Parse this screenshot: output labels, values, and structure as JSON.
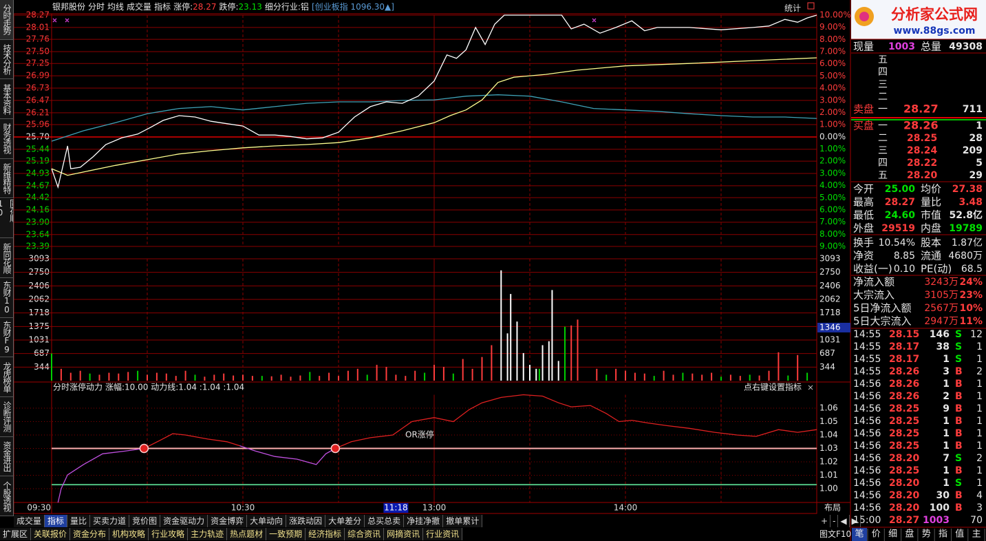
{
  "header": {
    "stock": "银邦股份",
    "menus": [
      "分时",
      "均线",
      "成交量",
      "指标"
    ],
    "limit_up_label": "涨停:",
    "limit_up": "28.27",
    "limit_down_label": "跌停:",
    "limit_down": "23.13",
    "industry": "细分行业:铝",
    "index": "[创业板指 1096.30▲]",
    "stats_button": "统计"
  },
  "side_tabs": [
    "分时走势",
    "技术分析",
    "基本资料",
    "财务透视",
    "新维精特",
    "同花顺10",
    "新同花顺",
    "东财10",
    "东财F9",
    "龙虎榜单",
    "诊断评测",
    "资金进出",
    "个股透视"
  ],
  "chart_data": [
    {
      "type": "line",
      "base": 25.7,
      "xlim": [
        0,
        240
      ],
      "xgrid": [
        30,
        60,
        90,
        120,
        150,
        180,
        210
      ],
      "ylim": [
        23.39,
        28.27
      ],
      "yticks": [
        28.27,
        28.01,
        27.76,
        {
          "value": 27.5,
          "label": "27.50"
        },
        27.25,
        26.99,
        26.73,
        26.47,
        26.21,
        25.96,
        {
          "value": 25.7,
          "label": "25.70"
        },
        25.44,
        25.19,
        24.93,
        24.67,
        24.42,
        24.16,
        {
          "value": 23.9,
          "label": "23.90"
        },
        23.64,
        23.39
      ],
      "y2lim": [
        -9,
        10
      ],
      "y2ticks": [
        {
          "value": 10,
          "label": "10.00%"
        },
        {
          "value": 9,
          "label": "9.00%"
        },
        {
          "value": 8,
          "label": "8.00%"
        },
        {
          "value": 7,
          "label": "7.00%"
        },
        {
          "value": 6,
          "label": "6.00%"
        },
        {
          "value": 5,
          "label": "5.00%"
        },
        {
          "value": 4,
          "label": "4.00%"
        },
        {
          "value": 3,
          "label": "3.00%"
        },
        {
          "value": 2,
          "label": "2.00%"
        },
        {
          "value": 1,
          "label": "1.00%"
        },
        {
          "value": 0,
          "label": "0.00%"
        },
        {
          "value": -1,
          "label": "1.00%"
        },
        {
          "value": -2,
          "label": "2.00%"
        },
        {
          "value": -3,
          "label": "3.00%"
        },
        {
          "value": -4,
          "label": "4.00%"
        },
        {
          "value": -5,
          "label": "5.00%"
        },
        {
          "value": -6,
          "label": "6.00%"
        },
        {
          "value": -7,
          "label": "7.00%"
        },
        {
          "value": -8,
          "label": "8.00%"
        },
        {
          "value": -9,
          "label": "9.00%"
        }
      ],
      "series": [
        {
          "color": "#3fa3b8",
          "x": [
            0,
            10,
            20,
            30,
            40,
            50,
            60,
            70,
            80,
            90,
            100,
            110,
            120,
            130,
            140,
            150,
            160,
            170,
            180,
            190,
            200,
            210,
            220,
            230,
            240
          ],
          "values": [
            25.61,
            25.83,
            26.0,
            26.19,
            26.3,
            26.34,
            26.27,
            26.34,
            26.41,
            26.44,
            26.44,
            26.47,
            26.48,
            26.56,
            26.59,
            26.56,
            26.44,
            26.3,
            26.27,
            26.24,
            26.19,
            26.15,
            26.12,
            26.12,
            26.09
          ]
        },
        {
          "color": "#ffff90",
          "x": [
            0,
            5,
            10,
            20,
            30,
            40,
            50,
            60,
            70,
            80,
            90,
            100,
            110,
            120,
            125,
            130,
            135,
            140,
            145,
            155,
            165,
            180,
            200,
            220,
            240
          ],
          "values": [
            25.03,
            24.89,
            24.96,
            25.1,
            25.22,
            25.34,
            25.41,
            25.47,
            25.51,
            25.54,
            25.58,
            25.68,
            25.83,
            26.0,
            26.15,
            26.27,
            26.48,
            26.85,
            26.96,
            27.02,
            27.11,
            27.2,
            27.25,
            27.31,
            27.37
          ]
        },
        {
          "color": "#ffffff",
          "x": [
            0,
            2,
            5,
            6,
            9,
            13,
            17,
            22,
            27,
            31,
            35,
            40,
            45,
            50,
            55,
            60,
            65,
            70,
            75,
            80,
            85,
            90,
            95,
            100,
            105,
            110,
            115,
            120,
            124,
            127,
            130,
            133,
            136,
            139,
            142,
            160,
            163,
            167,
            172,
            177,
            182,
            186,
            190,
            200,
            210,
            220,
            225,
            230,
            234,
            237,
            240
          ],
          "values": [
            25.03,
            24.64,
            25.51,
            25.03,
            25.06,
            25.28,
            25.54,
            25.68,
            25.76,
            25.9,
            26.05,
            26.15,
            26.12,
            26.03,
            25.98,
            25.93,
            25.74,
            25.74,
            25.71,
            25.66,
            25.68,
            25.8,
            26.12,
            26.34,
            26.44,
            26.41,
            26.56,
            26.88,
            27.43,
            27.36,
            27.54,
            28.01,
            27.65,
            28.08,
            28.27,
            28.27,
            27.98,
            28.08,
            27.89,
            28.01,
            28.15,
            27.94,
            28.01,
            28.01,
            27.96,
            28.01,
            28.04,
            28.18,
            28.12,
            28.21,
            28.27
          ]
        }
      ]
    },
    {
      "type": "bar",
      "xlim": [
        0,
        240
      ],
      "ylim": [
        0,
        3093
      ],
      "yticks": [
        3093,
        2750,
        2406,
        2062,
        1718,
        1375,
        1031,
        687,
        344
      ],
      "current": 1346,
      "series": [
        {
          "color": "#ff3c3c",
          "x": [
            3,
            6,
            9,
            15,
            18,
            21,
            24,
            30,
            33,
            36,
            39,
            42,
            48,
            51,
            54,
            57,
            60,
            63,
            69,
            72,
            75,
            78,
            84,
            87,
            90,
            93,
            96,
            102,
            105,
            108,
            111,
            114,
            120,
            123,
            129,
            132,
            135,
            138,
            163,
            165,
            171,
            177,
            180,
            183,
            186,
            192,
            195,
            201,
            204,
            207,
            213,
            216,
            222,
            225,
            228,
            234
          ],
          "values": [
            300,
            200,
            250,
            150,
            200,
            180,
            220,
            150,
            200,
            180,
            120,
            250,
            100,
            150,
            180,
            130,
            150,
            120,
            110,
            150,
            100,
            130,
            120,
            200,
            120,
            250,
            300,
            400,
            350,
            150,
            120,
            250,
            400,
            350,
            550,
            300,
            600,
            900,
            1400,
            1550,
            300,
            300,
            250,
            200,
            180,
            250,
            150,
            180,
            150,
            200,
            150,
            120,
            130,
            250,
            720,
            650
          ]
        },
        {
          "color": "#00d000",
          "x": [
            0,
            12,
            27,
            45,
            66,
            81,
            99,
            117,
            126,
            153,
            161,
            174,
            189,
            198,
            210,
            219,
            231,
            237
          ],
          "values": [
            690,
            180,
            250,
            150,
            120,
            220,
            150,
            200,
            180,
            300,
            1370,
            150,
            120,
            200,
            100,
            150,
            130,
            200
          ]
        },
        {
          "color": "#ffffff",
          "x": [
            141,
            143,
            144,
            146,
            148,
            150,
            152,
            154,
            156,
            157,
            159
          ],
          "values": [
            2800,
            1200,
            2200,
            1500,
            700,
            400,
            300,
            900,
            1000,
            2300,
            500
          ]
        }
      ]
    },
    {
      "type": "line",
      "title": "分时涨停动力",
      "subtitle": "涨幅:10.00 动力线:1.04 :1.04 :1.04",
      "hint": "点右键设置指标",
      "annotation": "OR涨停",
      "layout_button": "布局",
      "xlim": [
        0,
        240
      ],
      "xticks": [
        {
          "value": 0,
          "label": "09:30"
        },
        {
          "value": 60,
          "label": "10:30"
        },
        {
          "value": 120,
          "label": "13:00"
        },
        {
          "value": 180,
          "label": "14:00"
        }
      ],
      "cursor": {
        "value": 108,
        "label": "11:18"
      },
      "ylim": [
        0.99,
        1.07
      ],
      "ytick_side": "right",
      "grid_style": "dotted",
      "yticks": [
        1.06,
        1.05,
        1.04,
        1.03,
        1.02,
        1.01,
        {
          "value": 1,
          "label": "1.00"
        }
      ],
      "levels": [
        1.03,
        1.003
      ],
      "level_colors": [
        "#ffb0b0",
        "#50c080"
      ],
      "markers": {
        "x": [
          29,
          89
        ],
        "values": [
          1.03,
          1.03
        ]
      },
      "series": [
        {
          "color": "#c050e0",
          "x": [
            2,
            3,
            5,
            10,
            16,
            23,
            29,
            34,
            38,
            42,
            49,
            55,
            59,
            64,
            70,
            77,
            83,
            86,
            89,
            94,
            100,
            107,
            113,
            120,
            126,
            131,
            135,
            141,
            148,
            154,
            159,
            163,
            169,
            174,
            178,
            182,
            187,
            193,
            200,
            208,
            215,
            221,
            228,
            234,
            240
          ],
          "values": [
            0.9897,
            1.0,
            1.0103,
            1.018,
            1.026,
            1.028,
            1.03,
            null,
            null,
            null,
            null,
            null,
            1.032,
            1.028,
            1.024,
            1.022,
            1.018,
            1.026,
            1.03,
            null,
            null,
            null,
            null,
            null,
            null,
            null,
            null,
            null,
            null,
            null,
            null,
            null,
            null,
            null,
            null,
            null,
            null,
            null,
            null,
            null,
            null,
            null,
            null,
            null,
            null
          ]
        },
        {
          "color": "#e02020",
          "x": [
            2,
            3,
            5,
            10,
            16,
            23,
            29,
            34,
            38,
            42,
            49,
            55,
            59,
            64,
            70,
            77,
            83,
            86,
            89,
            94,
            100,
            107,
            113,
            120,
            126,
            131,
            135,
            141,
            148,
            154,
            159,
            163,
            169,
            174,
            178,
            182,
            187,
            193,
            200,
            208,
            215,
            221,
            228,
            234,
            240
          ],
          "values": [
            null,
            null,
            null,
            null,
            null,
            null,
            1.03,
            1.036,
            1.041,
            1.04,
            1.037,
            1.035,
            1.032,
            null,
            null,
            null,
            null,
            null,
            1.03,
            1.035,
            1.038,
            1.04,
            1.05,
            1.053,
            1.05,
            1.059,
            1.064,
            1.068,
            1.07,
            1.069,
            1.064,
            1.061,
            1.062,
            1.056,
            1.05,
            1.051,
            1.049,
            1.047,
            1.045,
            1.042,
            1.04,
            1.039,
            1.044,
            1.042,
            1.044
          ]
        }
      ]
    }
  ],
  "bottom_tabs": [
    "成交量",
    "指标",
    "量比",
    "买卖力道",
    "竞价图",
    "资金驱动力",
    "资金博弈",
    "大单动向",
    "涨跌动因",
    "大单差分",
    "总买总卖",
    "净挂净撤",
    "撤单累计"
  ],
  "nav_buttons": [
    "+",
    "-",
    "◀",
    "▶"
  ],
  "bottom_links": [
    "扩展区",
    "关联报价",
    "资金分布",
    "机构攻略",
    "行业攻略",
    "主力轨迹",
    "热点题材",
    "一致预期",
    "经济指标",
    "综合资讯",
    "网摘资讯",
    "行业资讯"
  ],
  "f10_button": "图文F10",
  "right_panel": {
    "logo": {
      "title": "分析家公式网",
      "url": "www.88gs.com"
    },
    "volume_row": [
      "现量",
      "1003",
      "总量",
      "49308"
    ],
    "ask_label": "卖盘",
    "asks": [
      [
        "五"
      ],
      [
        "四"
      ],
      [
        "三"
      ],
      [
        "二"
      ],
      [
        "一",
        "28.27",
        "711"
      ]
    ],
    "bid_label": "买盘",
    "bids": [
      [
        "一",
        "28.26",
        "1"
      ],
      [
        "二",
        "28.25",
        "28"
      ],
      [
        "三",
        "28.24",
        "209"
      ],
      [
        "四",
        "28.22",
        "5"
      ],
      [
        "五",
        "28.20",
        "29"
      ]
    ],
    "stats": [
      [
        "今开",
        "25.00",
        "均价",
        "27.38"
      ],
      [
        "最高",
        "28.27",
        "量比",
        "3.48"
      ],
      [
        "最低",
        "24.60",
        "市值",
        "52.8亿"
      ],
      [
        "外盘",
        "29519",
        "内盘",
        "19789"
      ]
    ],
    "stats2": [
      [
        "换手",
        "10.54%",
        "股本",
        "1.87亿"
      ],
      [
        "净资",
        "8.85",
        "流通",
        "4680万"
      ],
      [
        "收益(一)",
        "0.10",
        "PE(动)",
        "68.5"
      ]
    ],
    "flows": [
      [
        "净流入额",
        "3243万",
        "24%"
      ],
      [
        "大宗流入",
        "3105万",
        "23%"
      ],
      [
        "5日净流入额",
        "2567万",
        "10%"
      ],
      [
        "5日大宗流入",
        "2947万",
        "11%"
      ]
    ],
    "trades": [
      [
        "14:55",
        "28.15",
        "146",
        "S",
        "12"
      ],
      [
        "14:55",
        "28.17",
        "38",
        "S",
        "1"
      ],
      [
        "14:55",
        "28.17",
        "1",
        "S",
        "1"
      ],
      [
        "14:55",
        "28.26",
        "3",
        "B",
        "2"
      ],
      [
        "14:56",
        "28.26",
        "1",
        "B",
        "1"
      ],
      [
        "14:56",
        "28.26",
        "2",
        "B",
        "1"
      ],
      [
        "14:56",
        "28.25",
        "9",
        "B",
        "1"
      ],
      [
        "14:56",
        "28.25",
        "1",
        "B",
        "1"
      ],
      [
        "14:56",
        "28.25",
        "1",
        "B",
        "1"
      ],
      [
        "14:56",
        "28.25",
        "1",
        "B",
        "1"
      ],
      [
        "14:56",
        "28.20",
        "7",
        "S",
        "2"
      ],
      [
        "14:56",
        "28.25",
        "1",
        "B",
        "1"
      ],
      [
        "14:56",
        "28.20",
        "1",
        "S",
        "1"
      ],
      [
        "14:56",
        "28.20",
        "30",
        "B",
        "4"
      ],
      [
        "14:56",
        "28.20",
        "100",
        "B",
        "3"
      ],
      [
        "15:00",
        "28.27",
        "1003",
        "70"
      ]
    ],
    "tabs": [
      "笔",
      "价",
      "细",
      "盘",
      "势",
      "指",
      "值",
      "主"
    ]
  }
}
